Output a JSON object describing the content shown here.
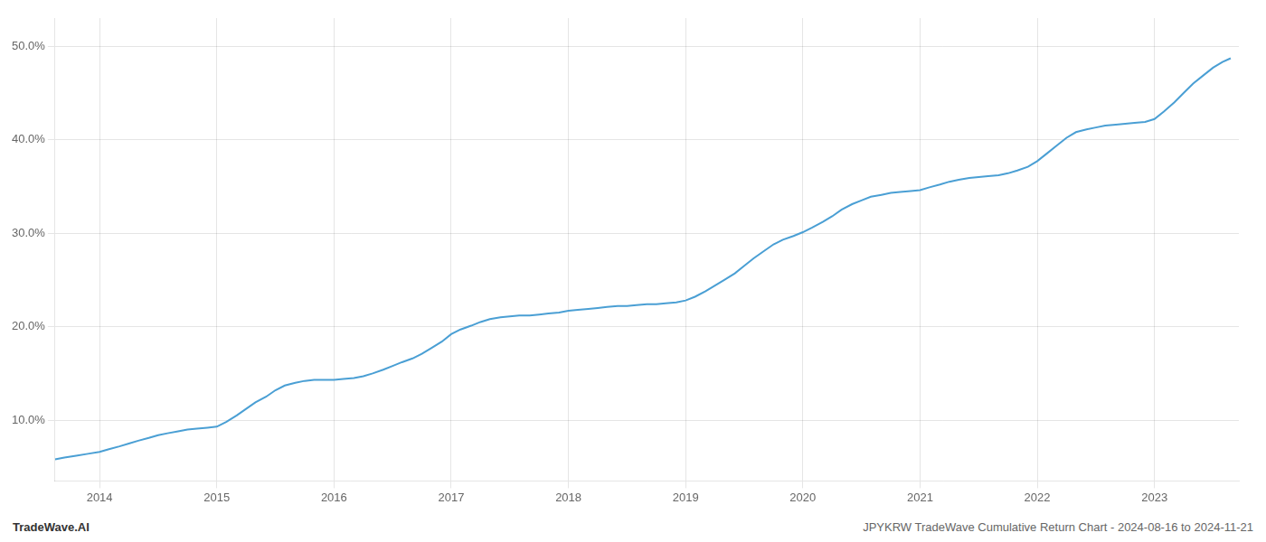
{
  "chart_data": {
    "type": "line",
    "color": "#4a9fd4",
    "marker": "none",
    "line_style": "solid",
    "grid": true,
    "annotations": [
      "TradeWave.AI",
      "JPYKRW TradeWave Cumulative Return Chart - 2024-08-16 to 2024-11-21"
    ],
    "xlim": [
      2013.62,
      2023.72
    ],
    "ylim": [
      3.5,
      53.0
    ],
    "xticks": [
      2014,
      2015,
      2016,
      2017,
      2018,
      2019,
      2020,
      2021,
      2022,
      2023
    ],
    "yticks": [
      {
        "value": 10.0,
        "label": "10.0%"
      },
      {
        "value": 20.0,
        "label": "20.0%"
      },
      {
        "value": 30.0,
        "label": "30.0%"
      },
      {
        "value": 40.0,
        "label": "40.0%"
      },
      {
        "value": 50.0,
        "label": "50.0%"
      }
    ],
    "x": [
      2013.62,
      2013.7,
      2013.8,
      2013.9,
      2014.0,
      2014.08,
      2014.17,
      2014.25,
      2014.33,
      2014.42,
      2014.5,
      2014.58,
      2014.67,
      2014.75,
      2014.83,
      2014.92,
      2015.0,
      2015.08,
      2015.17,
      2015.25,
      2015.33,
      2015.42,
      2015.5,
      2015.58,
      2015.67,
      2015.75,
      2015.83,
      2015.92,
      2016.0,
      2016.08,
      2016.17,
      2016.25,
      2016.33,
      2016.42,
      2016.5,
      2016.58,
      2016.67,
      2016.75,
      2016.83,
      2016.92,
      2017.0,
      2017.08,
      2017.17,
      2017.25,
      2017.33,
      2017.42,
      2017.5,
      2017.58,
      2017.67,
      2017.75,
      2017.83,
      2017.92,
      2018.0,
      2018.08,
      2018.17,
      2018.25,
      2018.33,
      2018.42,
      2018.5,
      2018.58,
      2018.67,
      2018.75,
      2018.83,
      2018.92,
      2019.0,
      2019.08,
      2019.17,
      2019.25,
      2019.33,
      2019.42,
      2019.5,
      2019.58,
      2019.67,
      2019.75,
      2019.83,
      2019.92,
      2020.0,
      2020.08,
      2020.17,
      2020.25,
      2020.33,
      2020.42,
      2020.5,
      2020.58,
      2020.67,
      2020.75,
      2020.83,
      2020.92,
      2021.0,
      2021.08,
      2021.17,
      2021.25,
      2021.33,
      2021.42,
      2021.5,
      2021.58,
      2021.67,
      2021.75,
      2021.83,
      2021.92,
      2022.0,
      2022.08,
      2022.17,
      2022.25,
      2022.33,
      2022.42,
      2022.5,
      2022.58,
      2022.67,
      2022.75,
      2022.83,
      2022.92,
      2023.0,
      2023.08,
      2023.17,
      2023.25,
      2023.33,
      2023.42,
      2023.5,
      2023.58,
      2023.65
    ],
    "values": [
      5.8,
      6.0,
      6.2,
      6.4,
      6.6,
      6.9,
      7.2,
      7.5,
      7.8,
      8.1,
      8.4,
      8.6,
      8.8,
      9.0,
      9.1,
      9.2,
      9.3,
      9.8,
      10.5,
      11.2,
      11.9,
      12.5,
      13.2,
      13.7,
      14.0,
      14.2,
      14.3,
      14.3,
      14.3,
      14.4,
      14.5,
      14.7,
      15.0,
      15.4,
      15.8,
      16.2,
      16.6,
      17.1,
      17.7,
      18.4,
      19.2,
      19.7,
      20.1,
      20.5,
      20.8,
      21.0,
      21.1,
      21.2,
      21.2,
      21.3,
      21.4,
      21.5,
      21.7,
      21.8,
      21.9,
      22.0,
      22.1,
      22.2,
      22.2,
      22.3,
      22.4,
      22.4,
      22.5,
      22.6,
      22.8,
      23.2,
      23.8,
      24.4,
      25.0,
      25.7,
      26.5,
      27.3,
      28.1,
      28.8,
      29.3,
      29.7,
      30.1,
      30.6,
      31.2,
      31.8,
      32.5,
      33.1,
      33.5,
      33.9,
      34.1,
      34.3,
      34.4,
      34.5,
      34.6,
      34.9,
      35.2,
      35.5,
      35.7,
      35.9,
      36.0,
      36.1,
      36.2,
      36.4,
      36.7,
      37.1,
      37.7,
      38.5,
      39.4,
      40.2,
      40.8,
      41.1,
      41.3,
      41.5,
      41.6,
      41.7,
      41.8,
      41.9,
      42.2,
      43.0,
      44.0,
      45.0,
      46.0,
      46.9,
      47.7,
      48.3,
      48.7
    ]
  }
}
